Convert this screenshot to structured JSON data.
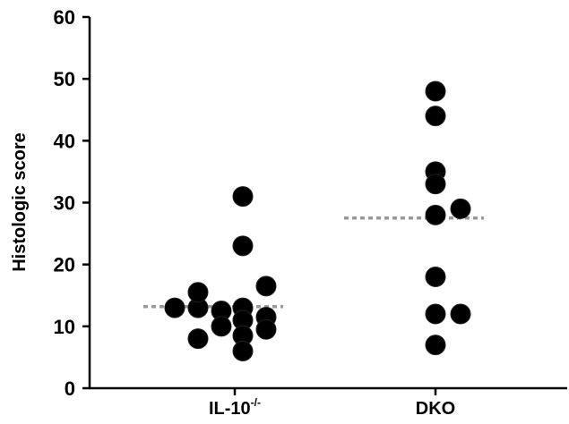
{
  "chart_data": {
    "type": "scatter",
    "title": "",
    "xlabel": "",
    "ylabel": "Histologic score",
    "ylim": [
      0,
      60
    ],
    "yticks": [
      0,
      10,
      20,
      30,
      40,
      50,
      60
    ],
    "categories": [
      {
        "base": "IL-10",
        "sup": "-/-"
      },
      {
        "base": "DKO",
        "sup": ""
      }
    ],
    "series": [
      {
        "category": 0,
        "points": [
          {
            "x": 1.0,
            "y": 13
          },
          {
            "x": 1.0,
            "y": 8
          },
          {
            "x": 1.0,
            "y": 13
          },
          {
            "x": 1.0,
            "y": 15.5
          },
          {
            "x": 1.0,
            "y": 12.5
          },
          {
            "x": 1.0,
            "y": 10
          },
          {
            "x": 1.0,
            "y": 31
          },
          {
            "x": 1.0,
            "y": 23
          },
          {
            "x": 1.0,
            "y": 13
          },
          {
            "x": 1.0,
            "y": 11
          },
          {
            "x": 1.0,
            "y": 8.5
          },
          {
            "x": 1.0,
            "y": 6
          },
          {
            "x": 1.0,
            "y": 16.5
          },
          {
            "x": 1.0,
            "y": 11.5
          },
          {
            "x": 1.0,
            "y": 9.5
          }
        ],
        "median": 13.2
      },
      {
        "category": 1,
        "points": [
          {
            "x": 2.0,
            "y": 48
          },
          {
            "x": 2.0,
            "y": 44
          },
          {
            "x": 2.0,
            "y": 35
          },
          {
            "x": 2.0,
            "y": 33
          },
          {
            "x": 2.0,
            "y": 28
          },
          {
            "x": 2.0,
            "y": 29
          },
          {
            "x": 2.0,
            "y": 18
          },
          {
            "x": 2.0,
            "y": 12
          },
          {
            "x": 2.0,
            "y": 12
          },
          {
            "x": 2.0,
            "y": 7
          }
        ],
        "median": 27.5
      }
    ],
    "colors": {
      "point": "#000000",
      "median": "#999999",
      "axis": "#000000"
    }
  }
}
